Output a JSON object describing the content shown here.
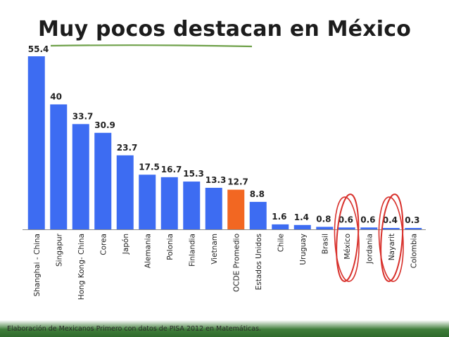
{
  "slide": {
    "title": "Muy pocos destacan en México",
    "footer": "Elaboración de Mexicanos Primero con datos de PISA 2012 en Matemáticas."
  },
  "colors": {
    "bar": "#3d6cf2",
    "highlight": "#f26722",
    "circle": "#d8312c",
    "title_underline": "#6fa14a",
    "footer_band": "#3f7d3a"
  },
  "chart_data": {
    "type": "bar",
    "title": "Muy pocos destacan en México",
    "xlabel": "",
    "ylabel": "",
    "ylim": [
      0,
      55.4
    ],
    "grid": false,
    "legend": "none",
    "categories": [
      "Shanghai - China",
      "Singapur",
      "Hong Kong- China",
      "Corea",
      "Japón",
      "Alemania",
      "Polonia",
      "Finlandia",
      "Vietnam",
      "OCDE Promedio",
      "Estados Unidos",
      "Chile",
      "Uruguay",
      "Brasil",
      "México",
      "Jordania",
      "Nayarit",
      "Colombia"
    ],
    "values": [
      55.4,
      40,
      33.7,
      30.9,
      23.7,
      17.5,
      16.7,
      15.3,
      13.3,
      12.7,
      8.8,
      1.6,
      1.4,
      0.8,
      0.6,
      0.6,
      0.4,
      0.3
    ],
    "value_labels": [
      "55.4",
      "40",
      "33.7",
      "30.9",
      "23.7",
      "17.5",
      "16.7",
      "15.3",
      "13.3",
      "12.7",
      "8.8",
      "1.6",
      "1.4",
      "0.8",
      "0.6",
      "0.6",
      "0.4",
      "0.3"
    ],
    "highlighted": [
      "OCDE Promedio"
    ],
    "circled": [
      "México",
      "Nayarit"
    ]
  }
}
